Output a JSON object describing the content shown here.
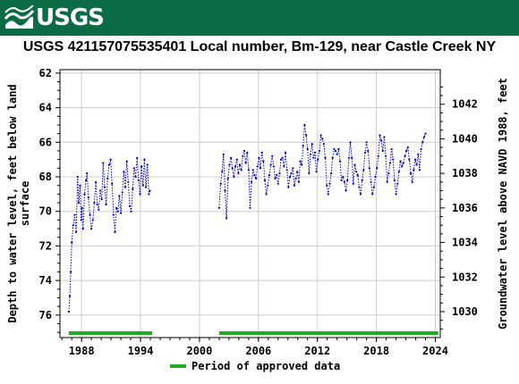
{
  "header": {
    "logo_text": "USGS",
    "background_color": "#0b6b44"
  },
  "chart_data": {
    "type": "line",
    "title": "USGS 421157075535401 Local number, Bm-129, near Castle Creek NY",
    "ylabel_left": "Depth to water level, feet below land surface",
    "ylabel_right": "Groundwater level above NAVD 1988, feet",
    "y_left_range": [
      77.3,
      61.8
    ],
    "y_left_ticks": [
      "62",
      "64",
      "66",
      "68",
      "70",
      "72",
      "74",
      "76"
    ],
    "y_right_ticks": [
      "1042",
      "1040",
      "1038",
      "1036",
      "1034",
      "1032",
      "1030"
    ],
    "x_range": [
      1985.8,
      2024.5
    ],
    "x_ticks": [
      "1988",
      "1994",
      "2000",
      "2006",
      "2012",
      "2018",
      "2024"
    ],
    "grid": true,
    "series": [
      {
        "name": "",
        "color": "#0000cc",
        "style": "dotted",
        "segments": [
          [
            [
              1986.7,
              75.8
            ],
            [
              1986.8,
              74.9
            ],
            [
              1986.9,
              73.5
            ],
            [
              1987.0,
              71.8
            ],
            [
              1987.15,
              70.8
            ],
            [
              1987.3,
              70.2
            ],
            [
              1987.45,
              71.2
            ],
            [
              1987.6,
              68.0
            ],
            [
              1987.7,
              69.5
            ],
            [
              1987.85,
              68.5
            ],
            [
              1987.95,
              70.5
            ],
            [
              1988.05,
              69.8
            ],
            [
              1988.15,
              71.0
            ],
            [
              1988.3,
              69.0
            ],
            [
              1988.45,
              68.2
            ],
            [
              1988.55,
              67.8
            ],
            [
              1988.7,
              69.2
            ],
            [
              1988.85,
              70.2
            ],
            [
              1989.0,
              71.0
            ],
            [
              1989.15,
              70.5
            ],
            [
              1989.3,
              69.5
            ],
            [
              1989.45,
              68.3
            ],
            [
              1989.6,
              69.6
            ],
            [
              1989.75,
              69.9
            ],
            [
              1989.9,
              68.8
            ],
            [
              1990.05,
              69.3
            ],
            [
              1990.2,
              67.2
            ],
            [
              1990.35,
              68.6
            ],
            [
              1990.5,
              69.6
            ],
            [
              1990.65,
              68.1
            ],
            [
              1990.8,
              67.3
            ],
            [
              1990.95,
              67.0
            ],
            [
              1991.1,
              68.4
            ],
            [
              1991.25,
              70.2
            ],
            [
              1991.4,
              71.2
            ],
            [
              1991.55,
              69.8
            ],
            [
              1991.7,
              70.0
            ],
            [
              1991.85,
              69.1
            ],
            [
              1992.0,
              70.1
            ],
            [
              1992.15,
              68.9
            ],
            [
              1992.3,
              67.7
            ],
            [
              1992.45,
              68.6
            ],
            [
              1992.6,
              67.1
            ],
            [
              1992.75,
              68.3
            ],
            [
              1992.9,
              69.7
            ],
            [
              1993.05,
              70.0
            ],
            [
              1993.2,
              68.7
            ],
            [
              1993.35,
              67.5
            ],
            [
              1993.5,
              68.0
            ],
            [
              1993.65,
              66.9
            ],
            [
              1993.8,
              68.2
            ],
            [
              1993.95,
              69.0
            ],
            [
              1994.1,
              67.4
            ],
            [
              1994.25,
              68.5
            ],
            [
              1994.4,
              67.0
            ],
            [
              1994.55,
              68.6
            ],
            [
              1994.7,
              67.3
            ],
            [
              1994.85,
              69.0
            ],
            [
              1994.95,
              68.8
            ]
          ],
          [
            [
              2002.0,
              69.8
            ],
            [
              2002.15,
              68.4
            ],
            [
              2002.3,
              67.7
            ],
            [
              2002.45,
              66.7
            ],
            [
              2002.6,
              68.8
            ],
            [
              2002.75,
              70.4
            ],
            [
              2002.9,
              68.1
            ],
            [
              2003.05,
              67.3
            ],
            [
              2003.2,
              66.9
            ],
            [
              2003.35,
              67.5
            ],
            [
              2003.5,
              68.0
            ],
            [
              2003.65,
              67.4
            ],
            [
              2003.8,
              67.0
            ],
            [
              2003.95,
              67.8
            ],
            [
              2004.1,
              67.3
            ],
            [
              2004.25,
              67.6
            ],
            [
              2004.4,
              66.8
            ],
            [
              2004.55,
              66.5
            ],
            [
              2004.7,
              67.2
            ],
            [
              2004.85,
              66.6
            ],
            [
              2005.0,
              67.6
            ],
            [
              2005.15,
              69.8
            ],
            [
              2005.3,
              68.3
            ],
            [
              2005.45,
              67.6
            ],
            [
              2005.6,
              67.9
            ],
            [
              2005.75,
              68.1
            ],
            [
              2005.9,
              67.4
            ],
            [
              2006.05,
              66.9
            ],
            [
              2006.2,
              67.5
            ],
            [
              2006.35,
              66.6
            ],
            [
              2006.5,
              67.1
            ],
            [
              2006.65,
              68.2
            ],
            [
              2006.8,
              69.0
            ],
            [
              2006.95,
              68.5
            ],
            [
              2007.1,
              67.9
            ],
            [
              2007.25,
              67.3
            ],
            [
              2007.4,
              66.8
            ],
            [
              2007.55,
              67.4
            ],
            [
              2007.7,
              68.1
            ],
            [
              2007.85,
              67.9
            ],
            [
              2008.0,
              68.4
            ],
            [
              2008.15,
              67.8
            ],
            [
              2008.3,
              67.0
            ],
            [
              2008.45,
              66.9
            ],
            [
              2008.6,
              67.4
            ],
            [
              2008.75,
              66.6
            ],
            [
              2008.9,
              67.6
            ],
            [
              2009.05,
              68.6
            ],
            [
              2009.2,
              68.0
            ],
            [
              2009.35,
              67.8
            ],
            [
              2009.5,
              67.5
            ],
            [
              2009.65,
              68.5
            ],
            [
              2009.8,
              68.1
            ],
            [
              2009.95,
              67.7
            ],
            [
              2010.1,
              68.3
            ],
            [
              2010.25,
              67.1
            ],
            [
              2010.4,
              67.3
            ],
            [
              2010.55,
              66.2
            ],
            [
              2010.7,
              65.0
            ],
            [
              2010.85,
              65.6
            ],
            [
              2011.0,
              66.4
            ],
            [
              2011.15,
              67.8
            ],
            [
              2011.3,
              66.7
            ],
            [
              2011.45,
              66.1
            ],
            [
              2011.6,
              66.9
            ],
            [
              2011.75,
              66.6
            ],
            [
              2011.9,
              67.7
            ],
            [
              2012.05,
              67.0
            ],
            [
              2012.2,
              66.5
            ],
            [
              2012.35,
              65.6
            ],
            [
              2012.5,
              65.8
            ],
            [
              2012.65,
              66.1
            ],
            [
              2012.8,
              66.9
            ],
            [
              2012.95,
              68.5
            ],
            [
              2013.1,
              69.0
            ],
            [
              2013.25,
              68.4
            ],
            [
              2013.4,
              67.8
            ],
            [
              2013.55,
              66.9
            ],
            [
              2013.7,
              66.4
            ],
            [
              2013.85,
              66.5
            ],
            [
              2014.0,
              66.7
            ],
            [
              2014.15,
              66.4
            ],
            [
              2014.3,
              67.1
            ],
            [
              2014.45,
              68.2
            ],
            [
              2014.6,
              68.0
            ],
            [
              2014.75,
              68.3
            ],
            [
              2014.9,
              68.8
            ],
            [
              2015.05,
              68.2
            ],
            [
              2015.2,
              66.9
            ],
            [
              2015.35,
              66.0
            ],
            [
              2015.5,
              66.9
            ],
            [
              2015.65,
              68.4
            ],
            [
              2015.8,
              67.3
            ],
            [
              2015.95,
              67.7
            ],
            [
              2016.1,
              67.9
            ],
            [
              2016.25,
              68.6
            ],
            [
              2016.4,
              69.0
            ],
            [
              2016.55,
              68.2
            ],
            [
              2016.7,
              67.6
            ],
            [
              2016.85,
              66.6
            ],
            [
              2017.0,
              66.0
            ],
            [
              2017.15,
              66.5
            ],
            [
              2017.3,
              67.5
            ],
            [
              2017.45,
              68.3
            ],
            [
              2017.6,
              69.0
            ],
            [
              2017.75,
              68.6
            ],
            [
              2017.9,
              68.0
            ],
            [
              2018.05,
              67.5
            ],
            [
              2018.2,
              66.8
            ],
            [
              2018.35,
              65.6
            ],
            [
              2018.5,
              65.9
            ],
            [
              2018.65,
              66.5
            ],
            [
              2018.8,
              65.7
            ],
            [
              2018.95,
              66.8
            ],
            [
              2019.1,
              68.3
            ],
            [
              2019.25,
              67.8
            ],
            [
              2019.4,
              67.2
            ],
            [
              2019.55,
              66.4
            ],
            [
              2019.7,
              67.0
            ],
            [
              2019.85,
              68.2
            ],
            [
              2020.0,
              69.0
            ],
            [
              2020.15,
              68.4
            ],
            [
              2020.3,
              67.7
            ],
            [
              2020.45,
              67.1
            ],
            [
              2020.6,
              67.4
            ],
            [
              2020.75,
              67.2
            ],
            [
              2020.9,
              66.8
            ],
            [
              2021.05,
              66.5
            ],
            [
              2021.2,
              66.3
            ],
            [
              2021.35,
              67.0
            ],
            [
              2021.5,
              67.8
            ],
            [
              2021.65,
              68.3
            ],
            [
              2021.8,
              67.6
            ],
            [
              2021.95,
              67.0
            ],
            [
              2022.1,
              67.3
            ],
            [
              2022.25,
              66.7
            ],
            [
              2022.4,
              67.6
            ],
            [
              2022.55,
              66.4
            ],
            [
              2022.7,
              66.0
            ],
            [
              2022.85,
              65.7
            ],
            [
              2023.0,
              65.5
            ]
          ]
        ]
      }
    ],
    "approved_periods": [
      [
        1986.7,
        1995.2
      ],
      [
        2002.0,
        2024.3
      ]
    ],
    "approved_color": "#22aa22",
    "legend_label": "Period of approved data"
  }
}
